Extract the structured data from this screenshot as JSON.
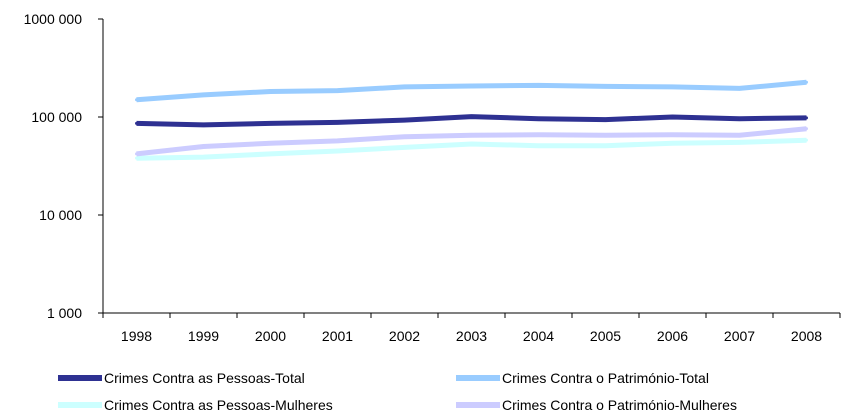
{
  "chart_data": {
    "type": "line",
    "title": "",
    "xlabel": "",
    "ylabel": "",
    "y_scale": "log",
    "ylim": [
      1000,
      1000000
    ],
    "y_ticks": [
      {
        "value": 1000,
        "label": "1 000"
      },
      {
        "value": 10000,
        "label": "10 000"
      },
      {
        "value": 100000,
        "label": "100 000"
      },
      {
        "value": 1000000,
        "label": "1000 000"
      }
    ],
    "categories": [
      "1998",
      "1999",
      "2000",
      "2001",
      "2002",
      "2003",
      "2004",
      "2005",
      "2006",
      "2007",
      "2008"
    ],
    "grid": false,
    "legend_position": "bottom",
    "series": [
      {
        "name": "Crimes Contra as Pessoas-Total",
        "color": "#2e3192",
        "values": [
          86000,
          83000,
          86000,
          88000,
          93000,
          101000,
          96000,
          94000,
          100000,
          96000,
          98000
        ]
      },
      {
        "name": "Crimes Contra o Património-Total",
        "color": "#99ccff",
        "values": [
          150000,
          168000,
          182000,
          186000,
          203000,
          207000,
          210000,
          205000,
          203000,
          196000,
          226000
        ]
      },
      {
        "name": "Crimes Contra as Pessoas-Mulheres",
        "color": "#ccffff",
        "values": [
          38000,
          39000,
          42000,
          45000,
          49000,
          53000,
          51000,
          51000,
          54000,
          55000,
          58000
        ]
      },
      {
        "name": "Crimes Contra o Património-Mulheres",
        "color": "#ccccff",
        "values": [
          42000,
          50000,
          54000,
          57000,
          63000,
          65000,
          66000,
          65000,
          66000,
          65000,
          76000
        ]
      }
    ]
  }
}
